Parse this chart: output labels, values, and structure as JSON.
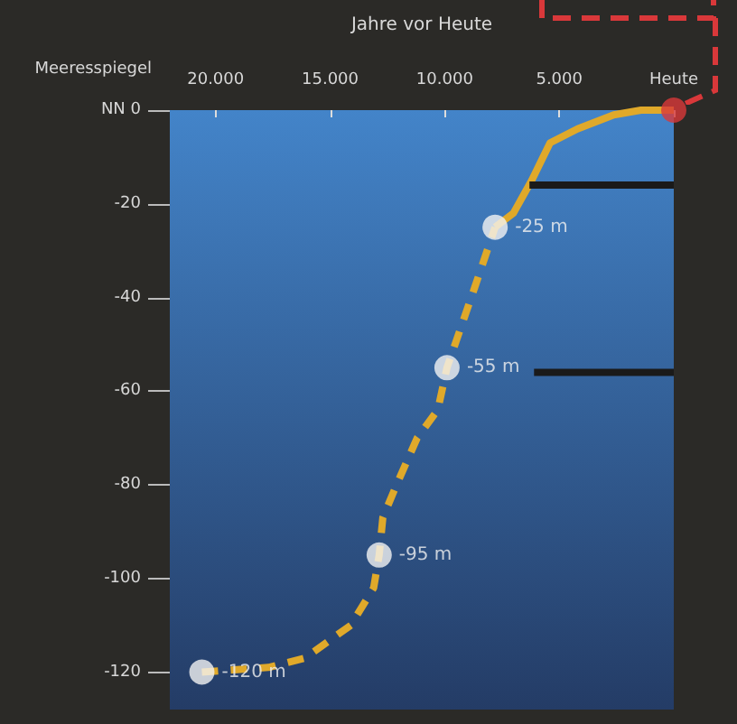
{
  "chart_data": {
    "type": "line",
    "xlabel": "Jahre vor Heute",
    "ylabel": "Meeresspiegel",
    "xlim": [
      22000,
      0
    ],
    "xticks": [
      {
        "value": 20000,
        "label": "20.000"
      },
      {
        "value": 15000,
        "label": "15.000"
      },
      {
        "value": 10000,
        "label": "10.000"
      },
      {
        "value": 5000,
        "label": "5.000"
      },
      {
        "value": 0,
        "label": "Heute"
      }
    ],
    "ylim": [
      -128,
      0
    ],
    "yticks": [
      {
        "value": 0,
        "label": "NN 0"
      },
      -20,
      -40,
      -60,
      -80,
      -100,
      -120
    ],
    "grid": false,
    "series": [
      {
        "color": "#e0a92a",
        "line_style": "dashed",
        "marker": "none",
        "x": [
          20600,
          17700,
          16100,
          14100,
          13100,
          12860,
          12700,
          12100,
          11200,
          10300,
          9900,
          8700,
          7800
        ],
        "values": [
          -120,
          -119,
          -117,
          -110,
          -102,
          -95,
          -87,
          -80,
          -70,
          -64,
          -55,
          -38,
          -25
        ]
      },
      {
        "color": "#e0a92a",
        "line_style": "solid",
        "marker": "none",
        "x": [
          7800,
          7000,
          6200,
          5400,
          4200,
          2620,
          1430,
          0
        ],
        "values": [
          -25,
          -22,
          -15,
          -7,
          -4,
          -1,
          0,
          0
        ]
      },
      {
        "type": "line",
        "color": "#1a1a1a",
        "line_style": "solid",
        "marker": "none",
        "x": [
          6300,
          0
        ],
        "values": [
          -16,
          -16
        ]
      },
      {
        "type": "line",
        "color": "#1a1a1a",
        "line_style": "solid",
        "marker": "none",
        "x": [
          6100,
          0
        ],
        "values": [
          -56,
          -56
        ]
      },
      {
        "type": "scatter",
        "color": "#f2f2f2",
        "marker": "circle",
        "x": [
          7800,
          9900,
          12860,
          20600
        ],
        "values": [
          -25,
          -55,
          -95,
          -120
        ],
        "value_labels": [
          "-25 m",
          "-55 m",
          "-95 m",
          "-120 m"
        ]
      },
      {
        "type": "scatter",
        "color": "#d9383a",
        "marker": "circle",
        "x": [
          0
        ],
        "values": [
          0
        ]
      }
    ]
  }
}
